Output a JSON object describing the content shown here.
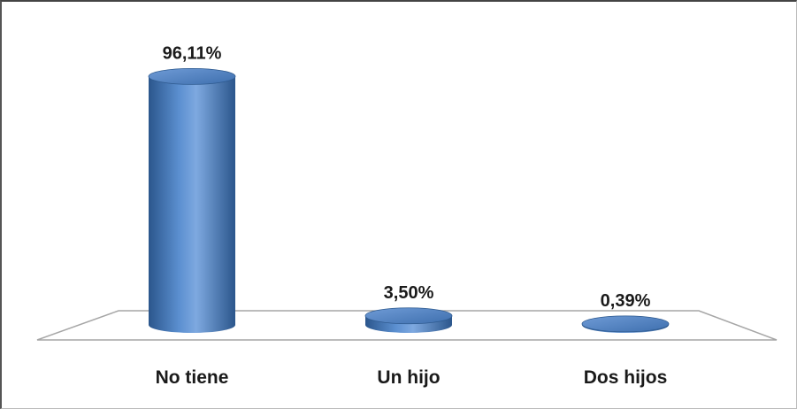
{
  "chart_data": {
    "type": "bar",
    "title": "",
    "xlabel": "",
    "ylabel": "",
    "style": "3d-cylinder",
    "categories": [
      "No tiene",
      "Un hijo",
      "Dos hijos"
    ],
    "values": [
      96.11,
      3.5,
      0.39
    ],
    "value_labels": [
      "96,11%",
      "3,50%",
      "0,39%"
    ],
    "ylim": [
      0,
      100
    ],
    "unit": "%",
    "grid": false,
    "legend": "none",
    "colors": {
      "bar": "#4f81bd",
      "bar_dark": "#2e5a8f",
      "bar_light": "#8fb4e3",
      "floor_stroke": "#a6a6a6",
      "text": "#1a1a1a"
    }
  }
}
